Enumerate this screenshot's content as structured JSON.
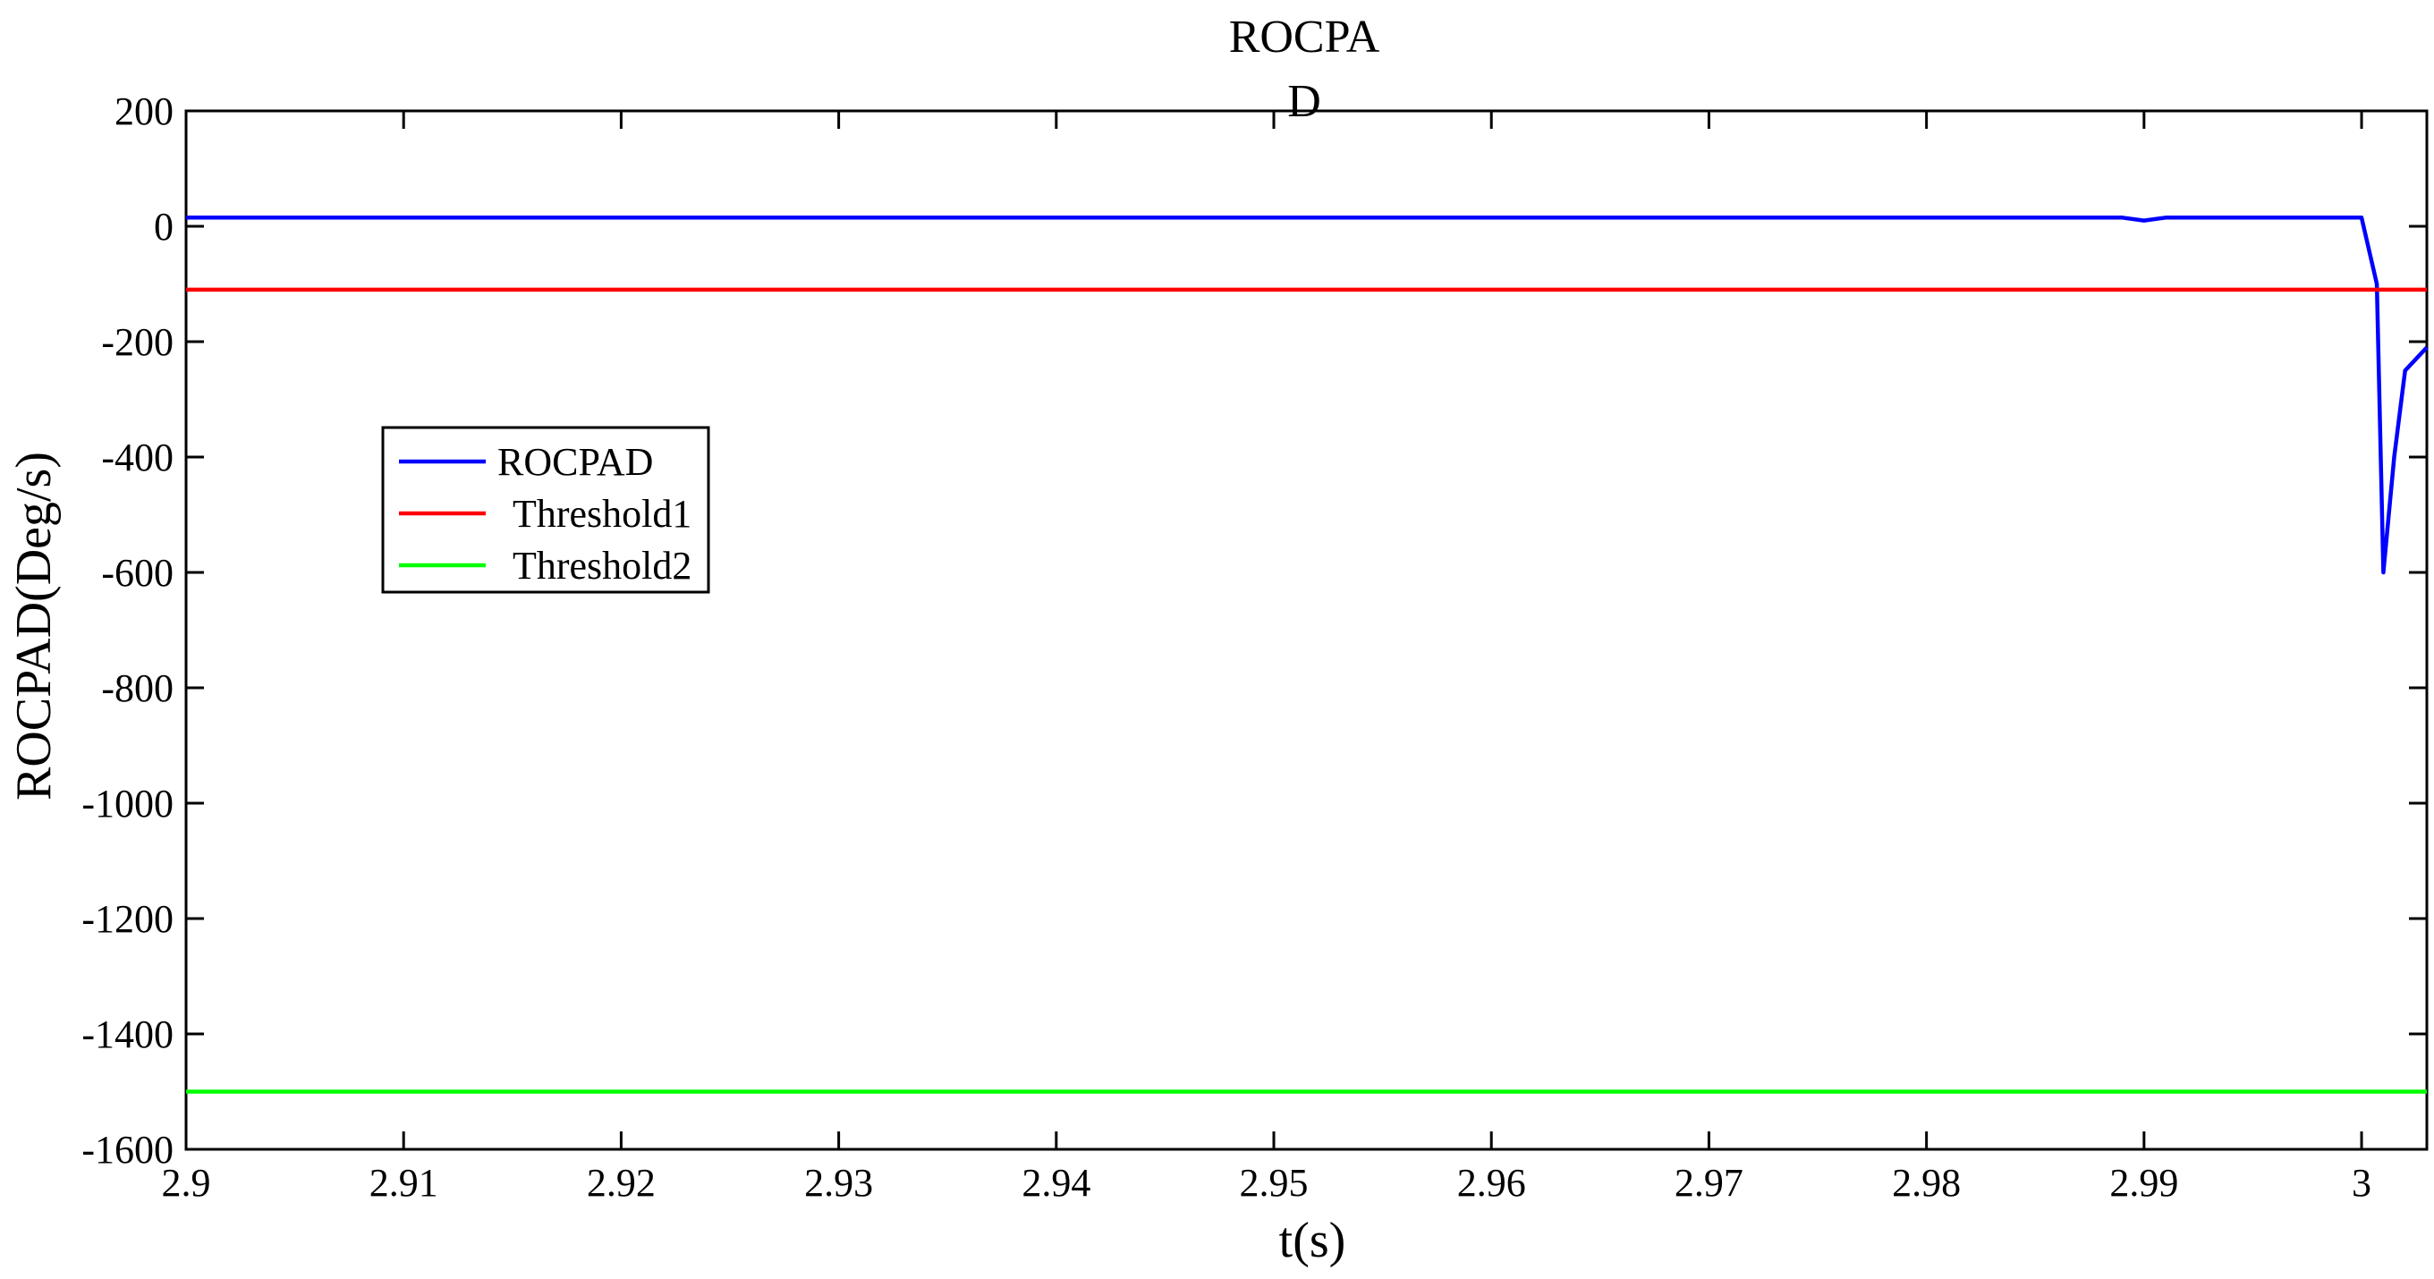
{
  "chart_data": {
    "type": "line",
    "title_lines": [
      "ROCPA",
      "D"
    ],
    "xlabel": "t(s)",
    "ylabel": "ROCPAD(Deg/s)",
    "xlim": [
      2.9,
      3.003
    ],
    "ylim": [
      -1600,
      200
    ],
    "x_ticks": [
      2.9,
      2.91,
      2.92,
      2.93,
      2.94,
      2.95,
      2.96,
      2.97,
      2.98,
      2.99,
      3.0
    ],
    "x_tick_labels": [
      "2.9",
      "2.91",
      "2.92",
      "2.93",
      "2.94",
      "2.95",
      "2.96",
      "2.97",
      "2.98",
      "2.99",
      "3"
    ],
    "y_ticks": [
      200,
      0,
      -200,
      -400,
      -600,
      -800,
      -1000,
      -1200,
      -1400,
      -1600
    ],
    "y_tick_labels": [
      "200",
      "0",
      "-200",
      "-400",
      "-600",
      "-800",
      "-1000",
      "-1200",
      "-1400",
      "-1600"
    ],
    "grid": false,
    "legend_position": "upper-left",
    "series": [
      {
        "name": "ROCPAD",
        "color": "#0000ff",
        "points": [
          [
            2.9,
            15
          ],
          [
            2.989,
            15
          ],
          [
            2.99,
            10
          ],
          [
            2.991,
            15
          ],
          [
            3.0,
            15
          ],
          [
            3.0007,
            -100
          ],
          [
            3.001,
            -600
          ],
          [
            3.0015,
            -400
          ],
          [
            3.002,
            -250
          ],
          [
            3.003,
            -210
          ]
        ]
      },
      {
        "name": "Threshold1",
        "color": "#ff0000",
        "points": [
          [
            2.9,
            -110
          ],
          [
            3.003,
            -110
          ]
        ]
      },
      {
        "name": "Threshold2",
        "color": "#00ff00",
        "points": [
          [
            2.9,
            -1500
          ],
          [
            3.003,
            -1500
          ]
        ]
      }
    ]
  }
}
